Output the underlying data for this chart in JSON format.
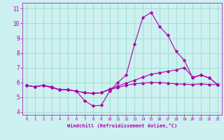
{
  "xlabel": "Windchill (Refroidissement éolien,°C)",
  "xlim": [
    -0.5,
    23.5
  ],
  "ylim": [
    3.8,
    11.4
  ],
  "xticks": [
    0,
    1,
    2,
    3,
    4,
    5,
    6,
    7,
    8,
    9,
    10,
    11,
    12,
    13,
    14,
    15,
    16,
    17,
    18,
    19,
    20,
    21,
    22,
    23
  ],
  "yticks": [
    4,
    5,
    6,
    7,
    8,
    9,
    10,
    11
  ],
  "bg_color": "#cdf0f0",
  "line_color": "#aa00aa",
  "grid_color": "#99ddcc",
  "lines": [
    {
      "x": [
        0,
        1,
        2,
        3,
        4,
        5,
        6,
        7,
        8,
        9,
        10,
        11,
        12,
        13,
        14,
        15,
        16,
        17,
        18,
        19,
        20,
        21,
        22,
        23
      ],
      "y": [
        5.8,
        5.7,
        5.8,
        5.7,
        5.5,
        5.5,
        5.4,
        4.75,
        4.4,
        4.45,
        5.4,
        6.0,
        6.5,
        8.6,
        10.4,
        10.75,
        9.8,
        9.2,
        8.1,
        7.5,
        6.3,
        6.5,
        6.3,
        5.85
      ]
    },
    {
      "x": [
        0,
        1,
        2,
        3,
        4,
        5,
        6,
        7,
        8,
        9,
        10,
        11,
        12,
        13,
        14,
        15,
        16,
        17,
        18,
        19,
        20,
        21,
        22,
        23
      ],
      "y": [
        5.8,
        5.7,
        5.8,
        5.65,
        5.5,
        5.5,
        5.4,
        5.3,
        5.25,
        5.3,
        5.55,
        5.75,
        5.95,
        6.15,
        6.35,
        6.55,
        6.65,
        6.75,
        6.85,
        7.0,
        6.35,
        6.5,
        6.3,
        5.85
      ]
    },
    {
      "x": [
        0,
        1,
        2,
        3,
        4,
        5,
        6,
        7,
        8,
        9,
        10,
        11,
        12,
        13,
        14,
        15,
        16,
        17,
        18,
        19,
        20,
        21,
        22,
        23
      ],
      "y": [
        5.8,
        5.7,
        5.8,
        5.65,
        5.5,
        5.5,
        5.4,
        5.3,
        5.25,
        5.3,
        5.5,
        5.65,
        5.8,
        5.9,
        5.95,
        6.0,
        5.98,
        5.95,
        5.9,
        5.87,
        5.85,
        5.9,
        5.85,
        5.85
      ]
    }
  ]
}
